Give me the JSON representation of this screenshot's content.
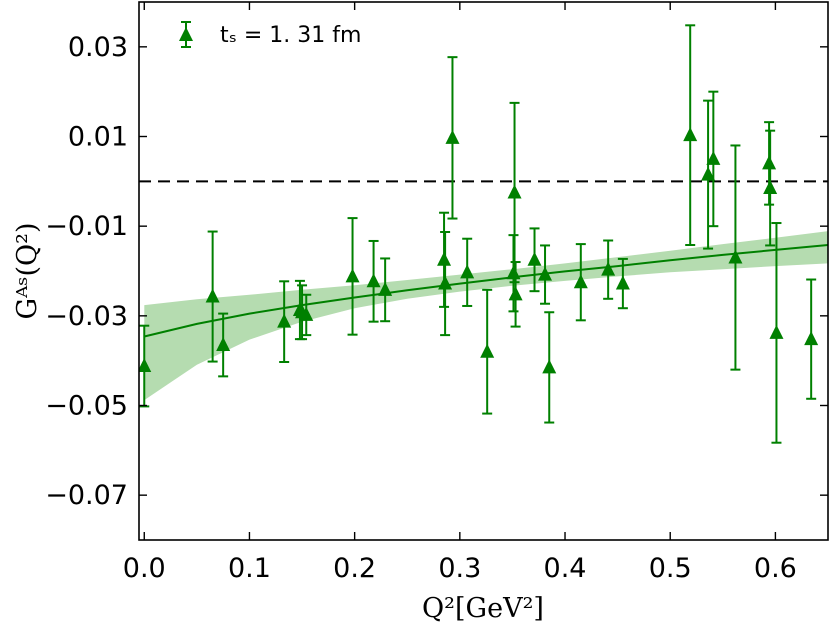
{
  "chart_data": {
    "type": "scatter",
    "title": "",
    "xlabel": "Q²[GeV²]",
    "ylabel": "Gᴬˢ(Q²)",
    "xlim": [
      -0.005,
      0.65
    ],
    "ylim": [
      -0.08,
      0.04
    ],
    "xticks": [
      0.0,
      0.1,
      0.2,
      0.3,
      0.4,
      0.5,
      0.6
    ],
    "xtick_labels": [
      "0.0",
      "0.1",
      "0.2",
      "0.3",
      "0.4",
      "0.5",
      "0.6"
    ],
    "yticks": [
      0.03,
      0.01,
      -0.01,
      -0.03,
      -0.05,
      -0.07
    ],
    "ytick_labels": [
      "0.03",
      "0.01",
      "−0.01",
      "−0.03",
      "−0.05",
      "−0.07"
    ],
    "legend": {
      "label": "tₛ = 1. 31 fm",
      "position": "top-left"
    },
    "colors": {
      "marker": "#008000",
      "band": "#b5dcb0",
      "fit": "#008000",
      "zero_line": "#000000"
    },
    "reference_line": {
      "y": 0.0,
      "style": "dashed"
    },
    "fit_curve": {
      "x": [
        0.0,
        0.05,
        0.1,
        0.15,
        0.2,
        0.25,
        0.3,
        0.35,
        0.4,
        0.45,
        0.5,
        0.55,
        0.6,
        0.65
      ],
      "y": [
        -0.0346,
        -0.0318,
        -0.0295,
        -0.0276,
        -0.0259,
        -0.0243,
        -0.0228,
        -0.0214,
        -0.0201,
        -0.0189,
        -0.0176,
        -0.0164,
        -0.0153,
        -0.0142
      ],
      "band_lower": [
        -0.0488,
        -0.0409,
        -0.0353,
        -0.0313,
        -0.0283,
        -0.0262,
        -0.0246,
        -0.0233,
        -0.0222,
        -0.0212,
        -0.0203,
        -0.0196,
        -0.0189,
        -0.0183
      ],
      "band_upper": [
        -0.0276,
        -0.0263,
        -0.0253,
        -0.0242,
        -0.0232,
        -0.022,
        -0.0208,
        -0.0196,
        -0.0183,
        -0.0169,
        -0.0155,
        -0.014,
        -0.0126,
        -0.0111
      ]
    },
    "series": [
      {
        "name": "tₛ = 1. 31 fm",
        "marker": "triangle-up",
        "points": [
          {
            "x": 0.0,
            "y": -0.0412,
            "err": 0.009
          },
          {
            "x": 0.065,
            "y": -0.0257,
            "err": 0.0145
          },
          {
            "x": 0.075,
            "y": -0.0365,
            "err": 0.007
          },
          {
            "x": 0.133,
            "y": -0.0313,
            "err": 0.009
          },
          {
            "x": 0.148,
            "y": -0.0287,
            "err": 0.0065
          },
          {
            "x": 0.15,
            "y": -0.0292,
            "err": 0.006
          },
          {
            "x": 0.154,
            "y": -0.0298,
            "err": 0.0045
          },
          {
            "x": 0.198,
            "y": -0.0212,
            "err": 0.013
          },
          {
            "x": 0.218,
            "y": -0.0223,
            "err": 0.009
          },
          {
            "x": 0.229,
            "y": -0.0242,
            "err": 0.007
          },
          {
            "x": 0.285,
            "y": -0.0175,
            "err": 0.0105
          },
          {
            "x": 0.286,
            "y": -0.0228,
            "err": 0.0115
          },
          {
            "x": 0.293,
            "y": 0.0097,
            "err": 0.018
          },
          {
            "x": 0.307,
            "y": -0.0203,
            "err": 0.0075
          },
          {
            "x": 0.326,
            "y": -0.038,
            "err": 0.0138
          },
          {
            "x": 0.351,
            "y": -0.0205,
            "err": 0.0085
          },
          {
            "x": 0.352,
            "y": -0.0025,
            "err": 0.02
          },
          {
            "x": 0.353,
            "y": -0.0252,
            "err": 0.0072
          },
          {
            "x": 0.371,
            "y": -0.0175,
            "err": 0.007
          },
          {
            "x": 0.381,
            "y": -0.0208,
            "err": 0.0065
          },
          {
            "x": 0.385,
            "y": -0.0415,
            "err": 0.0123
          },
          {
            "x": 0.415,
            "y": -0.0225,
            "err": 0.0085
          },
          {
            "x": 0.441,
            "y": -0.0197,
            "err": 0.0065
          },
          {
            "x": 0.455,
            "y": -0.0228,
            "err": 0.0055
          },
          {
            "x": 0.519,
            "y": 0.0103,
            "err": 0.0245
          },
          {
            "x": 0.536,
            "y": 0.0015,
            "err": 0.0165
          },
          {
            "x": 0.541,
            "y": 0.005,
            "err": 0.015
          },
          {
            "x": 0.562,
            "y": -0.017,
            "err": 0.025
          },
          {
            "x": 0.594,
            "y": 0.004,
            "err": 0.0092
          },
          {
            "x": 0.595,
            "y": -0.0015,
            "err": 0.0128
          },
          {
            "x": 0.601,
            "y": -0.0338,
            "err": 0.0245
          },
          {
            "x": 0.634,
            "y": -0.0352,
            "err": 0.0133
          }
        ]
      }
    ]
  }
}
